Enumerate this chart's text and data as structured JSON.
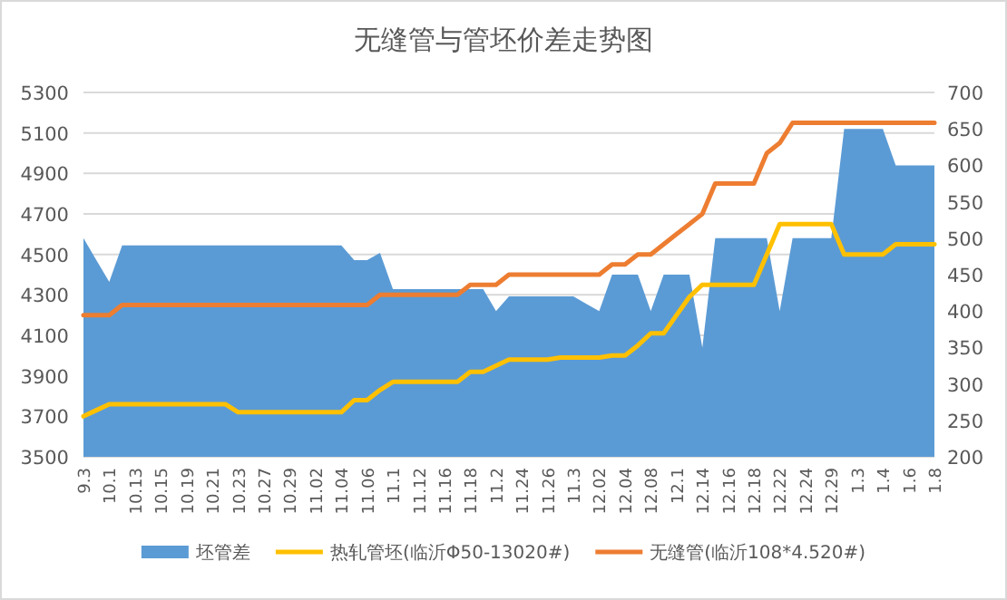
{
  "chart_data": {
    "type": "line",
    "title": "无缝管与管坯价差走势图",
    "categories": [
      "9.3",
      null,
      "10.1",
      null,
      "10.13",
      null,
      "10.15",
      null,
      "10.19",
      null,
      "10.21",
      null,
      "10.23",
      null,
      "10.27",
      null,
      "10.29",
      null,
      "11.02",
      null,
      "11.04",
      null,
      "11.06",
      null,
      "11.1",
      null,
      "11.12",
      null,
      "11.16",
      null,
      "11.18",
      null,
      "11.2",
      null,
      "11.24",
      null,
      "11.26",
      null,
      "11.3",
      null,
      "12.02",
      null,
      "12.04",
      null,
      "12.08",
      null,
      "12.1",
      null,
      "12.14",
      null,
      "12.16",
      null,
      "12.18",
      null,
      "12.22",
      null,
      "12.24",
      null,
      "12.29",
      null,
      "1.3",
      null,
      "1.4",
      null,
      "1.6",
      null,
      "1.8"
    ],
    "series": [
      {
        "name": "坯管差",
        "type": "area",
        "axis": "y2",
        "color": "#5b9bd5",
        "values": [
          500,
          470,
          440,
          490,
          490,
          490,
          490,
          490,
          490,
          490,
          490,
          490,
          490,
          490,
          490,
          490,
          490,
          490,
          490,
          490,
          490,
          470,
          470,
          480,
          430,
          430,
          430,
          430,
          430,
          430,
          430,
          430,
          400,
          420,
          420,
          420,
          420,
          420,
          420,
          410,
          400,
          450,
          450,
          450,
          400,
          450,
          450,
          450,
          350,
          500,
          500,
          500,
          500,
          500,
          400,
          500,
          500,
          500,
          500,
          650,
          650,
          650,
          650,
          600,
          600,
          600,
          600
        ]
      },
      {
        "name": "热轧管坯(临沂Φ50-13020#)",
        "type": "line",
        "color": "#ffc000",
        "values": [
          3700,
          3730,
          3760,
          3760,
          3760,
          3760,
          3760,
          3760,
          3760,
          3760,
          3760,
          3760,
          3720,
          3720,
          3720,
          3720,
          3720,
          3720,
          3720,
          3720,
          3720,
          3780,
          3780,
          3830,
          3870,
          3870,
          3870,
          3870,
          3870,
          3870,
          3920,
          3920,
          3950,
          3980,
          3980,
          3980,
          3980,
          3990,
          3990,
          3990,
          3990,
          4000,
          4000,
          4050,
          4110,
          4110,
          4200,
          4290,
          4350,
          4350,
          4350,
          4350,
          4350,
          4500,
          4650,
          4650,
          4650,
          4650,
          4650,
          4500,
          4500,
          4500,
          4500,
          4550,
          4550,
          4550,
          4550
        ]
      },
      {
        "name": "无缝管(临沂108*4.520#)",
        "type": "line",
        "color": "#ed7d31",
        "values": [
          4200,
          4200,
          4200,
          4250,
          4250,
          4250,
          4250,
          4250,
          4250,
          4250,
          4250,
          4250,
          4250,
          4250,
          4250,
          4250,
          4250,
          4250,
          4250,
          4250,
          4250,
          4250,
          4250,
          4300,
          4300,
          4300,
          4300,
          4300,
          4300,
          4300,
          4350,
          4350,
          4350,
          4400,
          4400,
          4400,
          4400,
          4400,
          4400,
          4400,
          4400,
          4450,
          4450,
          4500,
          4500,
          4550,
          4600,
          4650,
          4700,
          4850,
          4850,
          4850,
          4850,
          5000,
          5050,
          5150,
          5150,
          5150,
          5150,
          5150,
          5150,
          5150,
          5150,
          5150,
          5150,
          5150,
          5150
        ]
      }
    ],
    "ylim": [
      3500,
      5300
    ],
    "yticks": [
      3500,
      3700,
      3900,
      4100,
      4300,
      4500,
      4700,
      4900,
      5100,
      5300
    ],
    "y2lim": [
      200,
      700
    ],
    "y2ticks": [
      200,
      250,
      300,
      350,
      400,
      450,
      500,
      550,
      600,
      650,
      700
    ],
    "grid": "y",
    "legend": "bottom"
  }
}
